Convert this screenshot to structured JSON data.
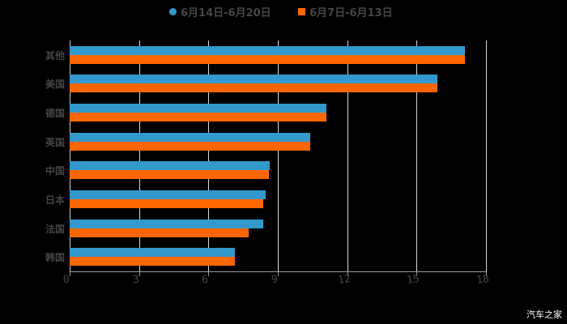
{
  "legend": {
    "series1_label": "6月14日-6月20日",
    "series2_label": "6月7日-6月13日"
  },
  "watermark": "汽车之家",
  "colors": {
    "series1": "#3399cc",
    "series2": "#ff6600",
    "background": "#000000"
  },
  "chart_data": {
    "type": "bar",
    "orientation": "horizontal",
    "title": "",
    "xlabel": "",
    "ylabel": "",
    "categories": [
      "其他",
      "美国",
      "德国",
      "英国",
      "中国",
      "日本",
      "法国",
      "韩国"
    ],
    "series": [
      {
        "name": "6月14日-6月20日",
        "color": "#3399cc",
        "values": [
          17.1,
          15.9,
          11.1,
          10.4,
          8.65,
          8.47,
          8.37,
          7.14
        ]
      },
      {
        "name": "6月7日-6月13日",
        "color": "#ff6600",
        "values": [
          17.1,
          15.9,
          11.1,
          10.4,
          8.6,
          8.37,
          7.74,
          7.14
        ]
      }
    ],
    "xlim": [
      0,
      18
    ],
    "xticks": [
      "0",
      "3",
      "6",
      "9",
      "12",
      "15",
      "18"
    ],
    "grid": true,
    "legend_position": "top"
  }
}
